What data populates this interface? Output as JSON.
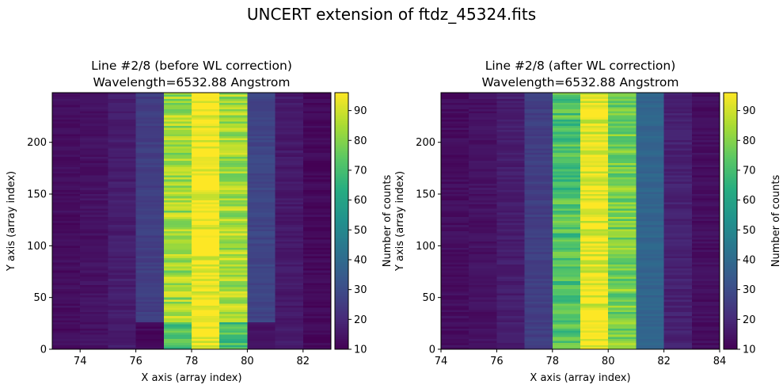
{
  "figure": {
    "suptitle": "UNCERT extension of ftdz_45324.fits"
  },
  "chart_data": [
    {
      "type": "heatmap",
      "title": "Line #2/8 (before WL correction)",
      "subtitle": "Wavelength=6532.88 Angstrom",
      "xlabel": "X axis (array index)",
      "ylabel": "Y axis (array index)",
      "xlim": [
        73,
        83
      ],
      "ylim": [
        0,
        248
      ],
      "xticks": [
        74,
        76,
        78,
        80,
        82
      ],
      "yticks": [
        0,
        50,
        100,
        150,
        200
      ],
      "colorbar": {
        "label": "Number of counts",
        "range": [
          10,
          96
        ],
        "ticks": [
          10,
          20,
          30,
          40,
          50,
          60,
          70,
          80,
          90
        ],
        "colormap": "viridis"
      },
      "columns": [
        {
          "x": 73,
          "value": 13
        },
        {
          "x": 74,
          "value": 14
        },
        {
          "x": 75,
          "value": 17
        },
        {
          "x": 76,
          "value": 26
        },
        {
          "x": 77,
          "value": 84
        },
        {
          "x": 78,
          "value": 96
        },
        {
          "x": 79,
          "value": 85
        },
        {
          "x": 80,
          "value": 28
        },
        {
          "x": 81,
          "value": 16
        },
        {
          "x": 82,
          "value": 12
        }
      ],
      "notes_top_rows": "columns 76-80 show more teal tones in rows ~220-248"
    },
    {
      "type": "heatmap",
      "title": "Line #2/8 (after WL correction)",
      "subtitle": "Wavelength=6532.88 Angstrom",
      "xlabel": "X axis (array index)",
      "ylabel": "Y axis (array index)",
      "xlim": [
        74,
        84
      ],
      "ylim": [
        0,
        248
      ],
      "xticks": [
        74,
        76,
        78,
        80,
        82,
        84
      ],
      "yticks": [
        0,
        50,
        100,
        150,
        200
      ],
      "colorbar": {
        "label": "Number of counts",
        "range": [
          10,
          96
        ],
        "ticks": [
          10,
          20,
          30,
          40,
          50,
          60,
          70,
          80,
          90
        ],
        "colormap": "viridis"
      },
      "columns": [
        {
          "x": 74,
          "value": 13
        },
        {
          "x": 75,
          "value": 14
        },
        {
          "x": 76,
          "value": 17
        },
        {
          "x": 77,
          "value": 26
        },
        {
          "x": 78,
          "value": 72
        },
        {
          "x": 79,
          "value": 94
        },
        {
          "x": 80,
          "value": 78
        },
        {
          "x": 81,
          "value": 38
        },
        {
          "x": 82,
          "value": 18
        },
        {
          "x": 83,
          "value": 13
        }
      ]
    }
  ]
}
